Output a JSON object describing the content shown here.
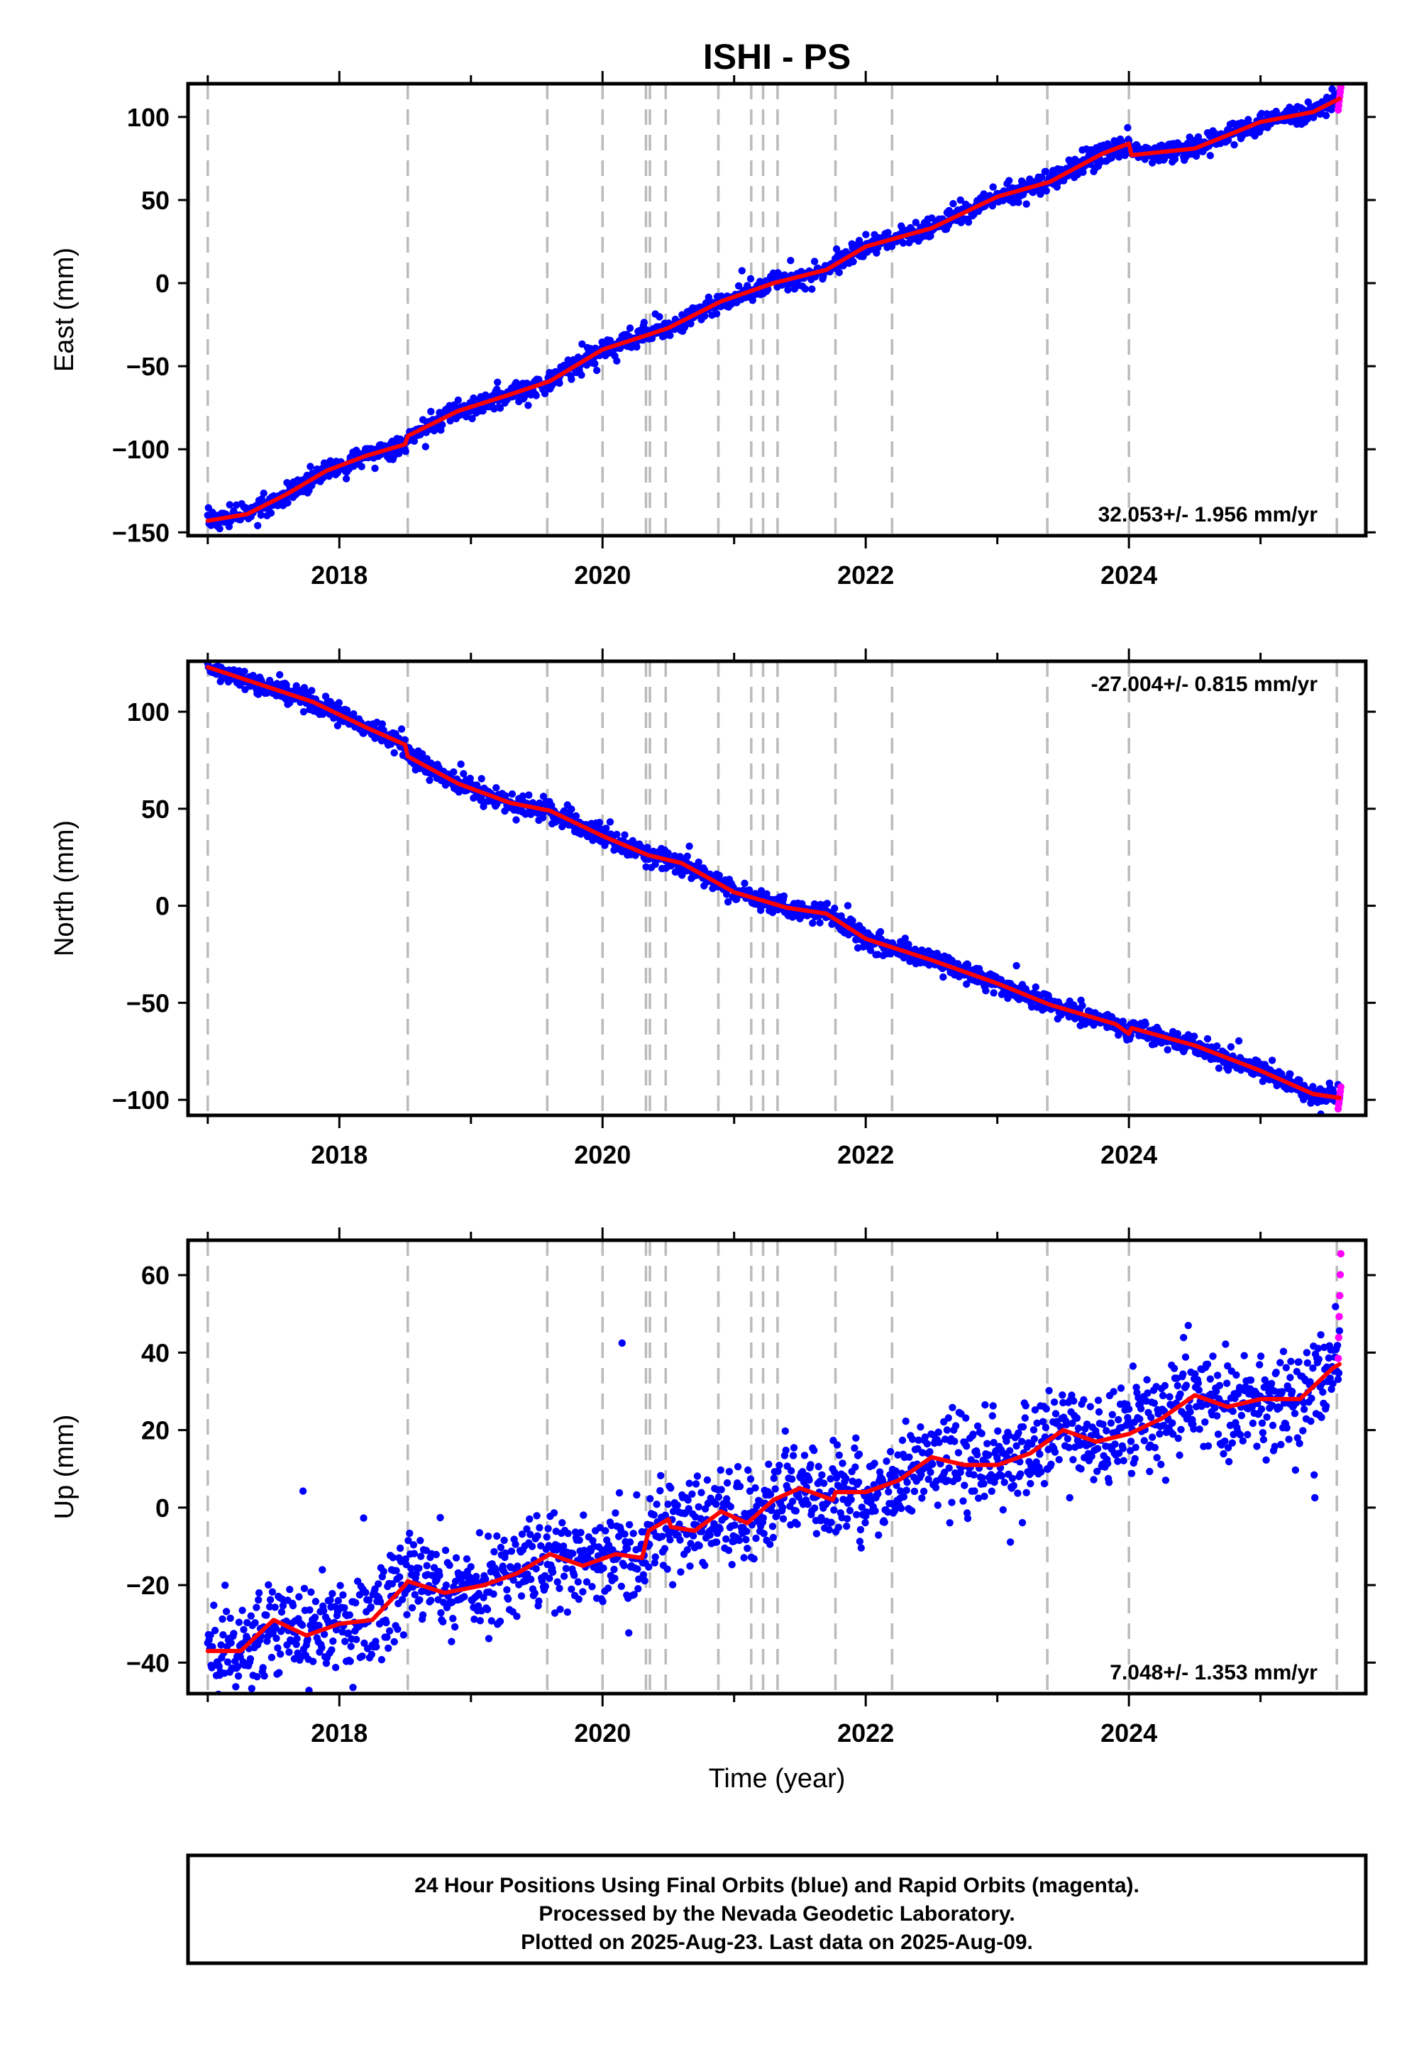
{
  "title": "ISHI - PS",
  "colors": {
    "final": "#0000ff",
    "rapid": "#ff00ff",
    "model": "#ff0000",
    "steps": "#bbbbbb",
    "frame": "#000000"
  },
  "chart_data": [
    {
      "type": "scatter",
      "component": "East",
      "ylabel": "East (mm)",
      "xlabel": "",
      "xlim": [
        2016.85,
        2025.8
      ],
      "ylim": [
        -152,
        120
      ],
      "yticks": [
        -150,
        -100,
        -50,
        0,
        50,
        100
      ],
      "xticks": [
        2018,
        2020,
        2022,
        2024
      ],
      "rate": "32.053+/- 1.956 mm/yr",
      "rate_position": "bottom-right",
      "model": {
        "x": [
          2017.0,
          2017.3,
          2017.6,
          2017.9,
          2018.2,
          2018.5,
          2018.52,
          2018.9,
          2019.3,
          2019.6,
          2020.0,
          2020.35,
          2020.5,
          2020.9,
          2021.3,
          2021.7,
          2022.0,
          2022.5,
          2023.0,
          2023.4,
          2023.8,
          2024.0,
          2024.02,
          2024.5,
          2025.0,
          2025.4,
          2025.6
        ],
        "y": [
          -143,
          -139,
          -127,
          -113,
          -104,
          -97,
          -92,
          -77,
          -67,
          -59,
          -40,
          -31,
          -27,
          -11,
          0,
          8,
          22,
          33,
          52,
          61,
          78,
          84,
          77,
          81,
          97,
          103,
          111
        ]
      },
      "scatter_spread": 3,
      "rapid": {
        "x": 2025.6,
        "y": 111
      }
    },
    {
      "type": "scatter",
      "component": "North",
      "ylabel": "North (mm)",
      "xlabel": "",
      "xlim": [
        2016.85,
        2025.8
      ],
      "ylim": [
        -108,
        126
      ],
      "yticks": [
        -100,
        -50,
        0,
        50,
        100
      ],
      "xticks": [
        2018,
        2020,
        2022,
        2024
      ],
      "rate": "-27.004+/- 0.815 mm/yr",
      "rate_position": "top-right",
      "model": {
        "x": [
          2017.0,
          2017.4,
          2017.8,
          2018.2,
          2018.5,
          2018.52,
          2018.9,
          2019.3,
          2019.6,
          2020.0,
          2020.35,
          2020.6,
          2021.0,
          2021.4,
          2021.7,
          2022.0,
          2022.5,
          2023.0,
          2023.4,
          2023.9,
          2024.0,
          2024.02,
          2024.5,
          2025.0,
          2025.4,
          2025.6
        ],
        "y": [
          123,
          114,
          105,
          92,
          83,
          77,
          63,
          53,
          49,
          36,
          26,
          22,
          7,
          -1,
          -4,
          -17,
          -28,
          -40,
          -51,
          -61,
          -66,
          -63,
          -72,
          -85,
          -97,
          -99
        ]
      },
      "scatter_spread": 2.5,
      "rapid": {
        "x": 2025.6,
        "y": -99
      }
    },
    {
      "type": "scatter",
      "component": "Up",
      "ylabel": "Up (mm)",
      "xlabel": "Time (year)",
      "xlim": [
        2016.85,
        2025.8
      ],
      "ylim": [
        -48,
        69
      ],
      "yticks": [
        -40,
        -20,
        0,
        20,
        40,
        60
      ],
      "xticks": [
        2018,
        2020,
        2022,
        2024
      ],
      "rate": "7.048+/- 1.353 mm/yr",
      "rate_position": "bottom-right",
      "model": {
        "x": [
          2017.0,
          2017.25,
          2017.5,
          2017.75,
          2018.0,
          2018.25,
          2018.5,
          2018.52,
          2018.8,
          2019.1,
          2019.35,
          2019.6,
          2019.85,
          2020.1,
          2020.3,
          2020.35,
          2020.5,
          2020.52,
          2020.7,
          2020.9,
          2021.1,
          2021.3,
          2021.5,
          2021.75,
          2021.77,
          2022.0,
          2022.25,
          2022.5,
          2022.75,
          2023.0,
          2023.25,
          2023.5,
          2023.75,
          2024.0,
          2024.25,
          2024.5,
          2024.75,
          2025.0,
          2025.3,
          2025.55,
          2025.6
        ],
        "y": [
          -37,
          -37,
          -29,
          -33,
          -30,
          -29,
          -20,
          -19,
          -22,
          -20,
          -17,
          -12,
          -15,
          -12,
          -13,
          -6,
          -3,
          -5,
          -6,
          -1,
          -4,
          2,
          5,
          2,
          4,
          4,
          7,
          13,
          11,
          11,
          14,
          20,
          17,
          19,
          23,
          29,
          26,
          28,
          28,
          36,
          37
        ]
      },
      "scatter_spread": 6,
      "rapid": {
        "x": 2025.6,
        "y": 52
      }
    }
  ],
  "step_lines": [
    2017.0,
    2018.52,
    2019.58,
    2020.0,
    2020.33,
    2020.36,
    2020.48,
    2020.88,
    2021.13,
    2021.22,
    2021.33,
    2021.77,
    2022.2,
    2023.38,
    2024.0,
    2025.58
  ],
  "footer": {
    "line1": "24 Hour Positions Using Final Orbits (blue) and Rapid Orbits (magenta).",
    "line2": "Processed by the Nevada Geodetic Laboratory.",
    "line3": "Plotted on 2025-Aug-23. Last data on 2025-Aug-09."
  }
}
